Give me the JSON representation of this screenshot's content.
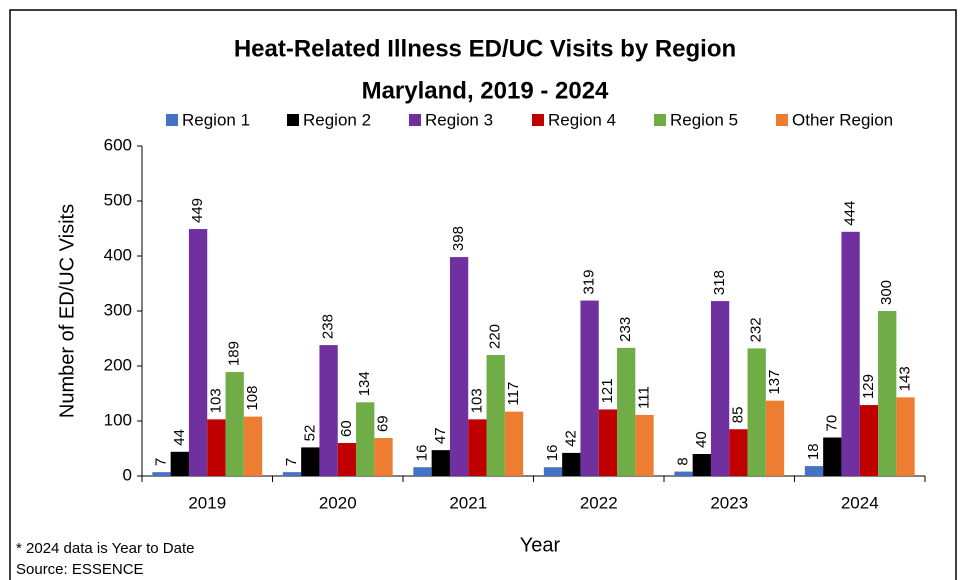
{
  "chart_data": {
    "type": "bar",
    "title": "Heat-Related Illness ED/UC Visits by Region",
    "subtitle": "Maryland, 2019 - 2024",
    "x_label": "Year",
    "y_label": "Number of ED/UC Visits",
    "notes": [
      "* 2024 data is Year to Date",
      "Source: ESSENCE"
    ],
    "categories": [
      "2019",
      "2020",
      "2021",
      "2022",
      "2023",
      "2024"
    ],
    "series": [
      {
        "name": "Region 1",
        "color": "#4472c4",
        "values": [
          7,
          7,
          16,
          16,
          8,
          18
        ]
      },
      {
        "name": "Region 2",
        "color": "#000000",
        "values": [
          44,
          52,
          47,
          42,
          40,
          70
        ]
      },
      {
        "name": "Region 3",
        "color": "#7030a0",
        "values": [
          449,
          238,
          398,
          319,
          318,
          444
        ]
      },
      {
        "name": "Region 4",
        "color": "#c00000",
        "values": [
          103,
          60,
          103,
          121,
          85,
          129
        ]
      },
      {
        "name": "Region 5",
        "color": "#70ad47",
        "values": [
          189,
          134,
          220,
          233,
          232,
          300
        ]
      },
      {
        "name": "Other Region",
        "color": "#ed7d31",
        "values": [
          108,
          69,
          117,
          111,
          137,
          143
        ]
      }
    ],
    "ylim": [
      0,
      600
    ],
    "yticks": [
      0,
      100,
      200,
      300,
      400,
      500,
      600
    ],
    "grid": false,
    "legend": "top"
  }
}
